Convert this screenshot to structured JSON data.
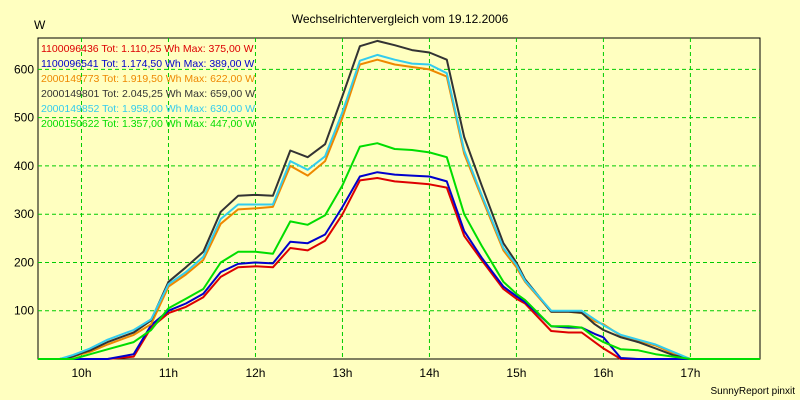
{
  "chart_data": {
    "type": "line",
    "title": "Wechselrichtervergleich vom 19.12.2006",
    "ylabel": "W",
    "xlabel": "",
    "credit": "SunnyReport pinxit",
    "x_range": [
      9.5,
      17.8
    ],
    "ylim": [
      0,
      665
    ],
    "x_ticks": [
      {
        "value": 10,
        "label": "10h"
      },
      {
        "value": 11,
        "label": "11h"
      },
      {
        "value": 12,
        "label": "12h"
      },
      {
        "value": 13,
        "label": "13h"
      },
      {
        "value": 14,
        "label": "14h"
      },
      {
        "value": 15,
        "label": "15h"
      },
      {
        "value": 16,
        "label": "16h"
      },
      {
        "value": 17,
        "label": "17h"
      }
    ],
    "y_ticks": [
      100,
      200,
      300,
      400,
      500,
      600
    ],
    "grid": true,
    "legend_position": "top-left",
    "x": [
      9.5,
      9.75,
      9.9,
      10.0,
      10.1,
      10.3,
      10.6,
      10.8,
      11.0,
      11.2,
      11.4,
      11.6,
      11.8,
      12.0,
      12.2,
      12.4,
      12.6,
      12.8,
      13.0,
      13.2,
      13.4,
      13.6,
      13.8,
      14.0,
      14.2,
      14.4,
      14.6,
      14.85,
      15.0,
      15.1,
      15.4,
      15.6,
      15.75,
      15.9,
      16.0,
      16.2,
      16.4,
      16.6,
      16.8,
      17.0,
      17.3,
      17.8
    ],
    "series": [
      {
        "name": "1100096436",
        "legend": "1100096436 Tot: 1.110,25 Wh Max: 375,00 W",
        "color": "#dd0000",
        "values": [
          0,
          0,
          0,
          0,
          0,
          0,
          5,
          65,
          95,
          108,
          128,
          170,
          190,
          192,
          190,
          230,
          225,
          245,
          300,
          370,
          375,
          368,
          365,
          362,
          355,
          255,
          205,
          145,
          125,
          115,
          58,
          55,
          55,
          35,
          22,
          0,
          0,
          0,
          0,
          0,
          0,
          0
        ]
      },
      {
        "name": "1100096541",
        "legend": "1100096541 Tot: 1.174,50 Wh Max: 389,00 W",
        "color": "#0000cc",
        "values": [
          0,
          0,
          0,
          0,
          0,
          0,
          10,
          70,
          100,
          115,
          135,
          180,
          197,
          200,
          198,
          243,
          240,
          258,
          315,
          378,
          387,
          382,
          380,
          378,
          368,
          265,
          210,
          150,
          130,
          118,
          68,
          65,
          65,
          52,
          45,
          2,
          0,
          0,
          0,
          0,
          0,
          0
        ]
      },
      {
        "name": "2000149773",
        "legend": "2000149773 Tot: 1.919,50 Wh Max: 622,00 W",
        "color": "#ee8800",
        "values": [
          0,
          0,
          5,
          10,
          15,
          30,
          50,
          72,
          150,
          175,
          205,
          280,
          310,
          312,
          315,
          400,
          380,
          410,
          500,
          610,
          620,
          610,
          605,
          600,
          585,
          425,
          335,
          225,
          190,
          160,
          98,
          98,
          95,
          78,
          72,
          48,
          38,
          28,
          12,
          0,
          0,
          0
        ]
      },
      {
        "name": "2000149801",
        "legend": "2000149801 Tot: 2.045,25 Wh Max: 659,00 W",
        "color": "#333333",
        "values": [
          0,
          0,
          5,
          12,
          18,
          35,
          55,
          80,
          160,
          190,
          222,
          305,
          338,
          340,
          338,
          432,
          418,
          445,
          545,
          648,
          659,
          650,
          640,
          635,
          620,
          460,
          360,
          240,
          200,
          165,
          98,
          98,
          96,
          72,
          60,
          45,
          35,
          22,
          8,
          0,
          0,
          0
        ]
      },
      {
        "name": "2000149852",
        "legend": "2000149852 Tot: 1.958,00 Wh Max: 630,00 W",
        "color": "#33ccee",
        "values": [
          0,
          0,
          8,
          15,
          22,
          40,
          60,
          82,
          155,
          180,
          212,
          290,
          320,
          320,
          320,
          410,
          392,
          420,
          512,
          618,
          630,
          620,
          612,
          610,
          592,
          432,
          340,
          230,
          195,
          162,
          100,
          100,
          100,
          82,
          70,
          50,
          40,
          30,
          15,
          0,
          0,
          0
        ]
      },
      {
        "name": "2000150622",
        "legend": "2000150622 Tot: 1.357,00 Wh Max: 447,00 W",
        "color": "#00dd00",
        "values": [
          0,
          0,
          0,
          5,
          10,
          20,
          35,
          60,
          105,
          125,
          145,
          200,
          222,
          222,
          218,
          285,
          278,
          298,
          360,
          440,
          447,
          435,
          433,
          428,
          418,
          300,
          235,
          160,
          135,
          122,
          68,
          68,
          65,
          45,
          35,
          20,
          18,
          10,
          5,
          0,
          0,
          0
        ]
      }
    ]
  }
}
